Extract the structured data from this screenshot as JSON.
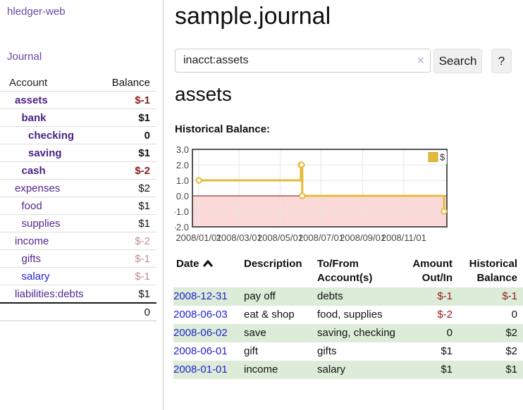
{
  "app": {
    "brand": "hledger-web",
    "nav": {
      "journal": "Journal"
    }
  },
  "sidebar": {
    "columns": {
      "account": "Account",
      "balance": "Balance"
    },
    "accounts": [
      {
        "name": "assets",
        "depth": 0,
        "name_style": "bold",
        "balance": "$-1",
        "bal_style": "bold neg"
      },
      {
        "name": "bank",
        "depth": 1,
        "name_style": "bold",
        "balance": "$1",
        "bal_style": "bold"
      },
      {
        "name": "checking",
        "depth": 2,
        "name_style": "bold",
        "balance": "0",
        "bal_style": "bold"
      },
      {
        "name": "saving",
        "depth": 2,
        "name_style": "bold",
        "balance": "$1",
        "bal_style": "bold"
      },
      {
        "name": "cash",
        "depth": 1,
        "name_style": "bold",
        "balance": "$-2",
        "bal_style": "bold neg"
      },
      {
        "name": "expenses",
        "depth": 0,
        "name_style": "",
        "balance": "$2",
        "bal_style": ""
      },
      {
        "name": "food",
        "depth": 1,
        "name_style": "",
        "balance": "$1",
        "bal_style": ""
      },
      {
        "name": "supplies",
        "depth": 1,
        "name_style": "",
        "balance": "$1",
        "bal_style": ""
      },
      {
        "name": "income",
        "depth": 0,
        "name_style": "",
        "balance": "$-2",
        "bal_style": "dim"
      },
      {
        "name": "gifts",
        "depth": 1,
        "name_style": "",
        "balance": "$-1",
        "bal_style": "dim"
      },
      {
        "name": "salary",
        "depth": 1,
        "name_style": "blue",
        "balance": "$-1",
        "bal_style": "dim"
      },
      {
        "name": "liabilities:debts",
        "depth": 0,
        "name_style": "",
        "balance": "$1",
        "bal_style": ""
      }
    ],
    "total": "0"
  },
  "header": {
    "title": "sample.journal"
  },
  "search": {
    "value": "inacct:assets",
    "clear_icon": "×",
    "button_label": "Search",
    "help_label": "?"
  },
  "account_page": {
    "heading": "assets",
    "chart_title": "Historical Balance:"
  },
  "chart_data": {
    "type": "line",
    "step": true,
    "legend": {
      "label": "$",
      "position": "top-right"
    },
    "series": [
      {
        "name": "$",
        "color": "#e6bb3a",
        "points": [
          [
            "2008-01-01",
            1
          ],
          [
            "2008-06-01",
            2
          ],
          [
            "2008-06-02",
            2
          ],
          [
            "2008-06-03",
            0
          ],
          [
            "2008-12-31",
            -1
          ]
        ]
      }
    ],
    "ylim": [
      -2,
      3
    ],
    "yticks": [
      "3.0",
      "2.0",
      "1.0",
      "0.0",
      "-1.0",
      "-2.0"
    ],
    "ytick_values": [
      3,
      2,
      1,
      0,
      -1,
      -2
    ],
    "xticks": [
      "2008/01/01",
      "2008/03/01",
      "2008/05/01",
      "2008/07/01",
      "2008/09/01",
      "2008/11/01"
    ],
    "grid": true,
    "negative_region_fill": "#fbd9d9",
    "zero_line_color": "#8b0000",
    "border_color": "#555555"
  },
  "register": {
    "headers": [
      {
        "label": "Date",
        "align": "left",
        "sorted": true
      },
      {
        "label": "Description",
        "align": "left",
        "sorted": false
      },
      {
        "label": "To/From Account(s)",
        "align": "left",
        "sorted": false
      },
      {
        "label": "Amount Out/In",
        "align": "right",
        "sorted": false
      },
      {
        "label": "Historical Balance",
        "align": "right",
        "sorted": false
      }
    ],
    "rows": [
      {
        "date": "2008-12-31",
        "description": "pay off",
        "accounts": "debts",
        "amount": "$-1",
        "amount_neg": true,
        "balance": "$-1",
        "balance_neg": true
      },
      {
        "date": "2008-06-03",
        "description": "eat & shop",
        "accounts": "food, supplies",
        "amount": "$-2",
        "amount_neg": true,
        "balance": "0",
        "balance_neg": false
      },
      {
        "date": "2008-06-02",
        "description": "save",
        "accounts": "saving, checking",
        "amount": "0",
        "amount_neg": false,
        "balance": "$2",
        "balance_neg": false
      },
      {
        "date": "2008-06-01",
        "description": "gift",
        "accounts": "gifts",
        "amount": "$1",
        "amount_neg": false,
        "balance": "$2",
        "balance_neg": false
      },
      {
        "date": "2008-01-01",
        "description": "income",
        "accounts": "salary",
        "amount": "$1",
        "amount_neg": false,
        "balance": "$1",
        "balance_neg": false
      }
    ]
  },
  "colors": {
    "sidebar_link_purple": "#6747a8",
    "account_purple": "#52278f",
    "account_bold_purple": "#4a2384",
    "unvisited_link_blue": "#2222dd",
    "register_date_blue": "#2222cc",
    "negative_red": "#8b1a1a",
    "dimmed_negative": "#c08f8f",
    "stripe_green": "#dcecd8",
    "chart_gold": "#e6bb3a",
    "chart_negative_pink": "#fbd9d9",
    "chart_zero_line": "#8b0000"
  }
}
